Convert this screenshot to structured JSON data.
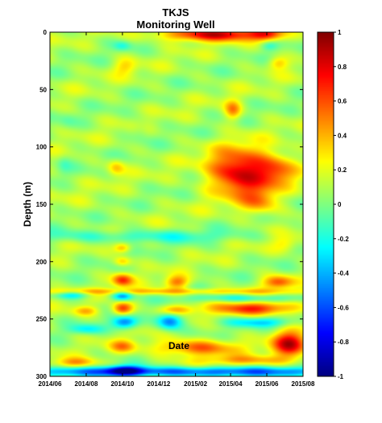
{
  "chart_data": {
    "type": "heatmap",
    "title": "TKJS",
    "subtitle": "Monitoring Well",
    "xlabel": "Date",
    "ylabel": "Depth (m)",
    "x_tick_labels": [
      "2014/06",
      "2014/08",
      "2014/10",
      "2014/12",
      "2015/02",
      "2015/04",
      "2015/06",
      "2015/08"
    ],
    "x_ticks": [
      "2014-06-01",
      "2014-08-01",
      "2014-10-01",
      "2014-12-01",
      "2015-02-01",
      "2015-04-01",
      "2015-06-01",
      "2015-08-01"
    ],
    "xlim": [
      "2014-06-01",
      "2015-08-01"
    ],
    "y_ticks": [
      0,
      50,
      100,
      150,
      200,
      250,
      300
    ],
    "ylim": [
      0,
      300
    ],
    "y_reversed": true,
    "colorbar": {
      "ticks": [
        1,
        0.8,
        0.6,
        0.4,
        0.2,
        0,
        -0.2,
        -0.4,
        -0.6,
        -0.8,
        -1
      ],
      "range": [
        -1,
        1
      ],
      "colormap": "jet",
      "placement": "right"
    },
    "base_value": 0.08,
    "features": [
      {
        "date": "2015-03-01",
        "depth": 2,
        "date_spread_days": 60,
        "depth_spread_m": 4,
        "value": 0.75
      },
      {
        "date": "2015-06-01",
        "depth": 2,
        "date_spread_days": 18,
        "depth_spread_m": 4,
        "value": 0.45
      },
      {
        "date": "2015-04-15",
        "depth": 122,
        "date_spread_days": 35,
        "depth_spread_m": 14,
        "value": 0.78
      },
      {
        "date": "2015-06-15",
        "depth": 120,
        "date_spread_days": 25,
        "depth_spread_m": 10,
        "value": 0.45
      },
      {
        "date": "2015-05-20",
        "depth": 148,
        "date_spread_days": 22,
        "depth_spread_m": 8,
        "value": 0.35
      },
      {
        "date": "2015-04-05",
        "depth": 68,
        "date_spread_days": 10,
        "depth_spread_m": 6,
        "value": 0.4
      },
      {
        "date": "2014-09-20",
        "depth": 118,
        "date_spread_days": 10,
        "depth_spread_m": 5,
        "value": 0.28
      },
      {
        "date": "2015-06-20",
        "depth": 27,
        "date_spread_days": 12,
        "depth_spread_m": 4,
        "value": 0.3
      },
      {
        "date": "2014-10-05",
        "depth": 30,
        "date_spread_days": 14,
        "depth_spread_m": 5,
        "value": 0.22
      },
      {
        "date": "2014-10-01",
        "depth": 12,
        "date_spread_days": 10,
        "depth_spread_m": 3,
        "value": -0.2
      },
      {
        "date": "2015-06-05",
        "depth": 12,
        "date_spread_days": 10,
        "depth_spread_m": 3,
        "value": -0.2
      },
      {
        "date": "2014-07-01",
        "depth": 78,
        "date_spread_days": 10,
        "depth_spread_m": 5,
        "value": -0.08
      },
      {
        "date": "2014-11-01",
        "depth": 85,
        "date_spread_days": 10,
        "depth_spread_m": 6,
        "value": -0.1
      },
      {
        "date": "2014-06-25",
        "depth": 115,
        "date_spread_days": 8,
        "depth_spread_m": 6,
        "value": -0.1
      },
      {
        "date": "2014-08-15",
        "depth": 150,
        "date_spread_days": 40,
        "depth_spread_m": 8,
        "value": 0.02
      },
      {
        "date": "2014-10-20",
        "depth": 178,
        "date_spread_days": 120,
        "depth_spread_m": 4,
        "value": -0.25
      },
      {
        "date": "2014-10-01",
        "depth": 188,
        "date_spread_days": 10,
        "depth_spread_m": 3,
        "value": 0.35
      },
      {
        "date": "2014-10-01",
        "depth": 200,
        "date_spread_days": 10,
        "depth_spread_m": 3,
        "value": 0.3
      },
      {
        "date": "2015-07-01",
        "depth": 185,
        "date_spread_days": 15,
        "depth_spread_m": 5,
        "value": 0.2
      },
      {
        "date": "2014-10-01",
        "depth": 216,
        "date_spread_days": 12,
        "depth_spread_m": 4,
        "value": 0.55
      },
      {
        "date": "2015-01-01",
        "depth": 218,
        "date_spread_days": 14,
        "depth_spread_m": 4,
        "value": 0.45
      },
      {
        "date": "2015-06-20",
        "depth": 218,
        "date_spread_days": 18,
        "depth_spread_m": 4,
        "value": 0.5
      },
      {
        "date": "2014-11-20",
        "depth": 226,
        "date_spread_days": 200,
        "depth_spread_m": 2,
        "value": 0.3
      },
      {
        "date": "2014-07-10",
        "depth": 229,
        "date_spread_days": 20,
        "depth_spread_m": 2.5,
        "value": -0.4
      },
      {
        "date": "2014-10-01",
        "depth": 230,
        "date_spread_days": 12,
        "depth_spread_m": 3,
        "value": -0.55
      },
      {
        "date": "2015-05-01",
        "depth": 232,
        "date_spread_days": 70,
        "depth_spread_m": 2.5,
        "value": -0.3
      },
      {
        "date": "2014-10-01",
        "depth": 241,
        "date_spread_days": 12,
        "depth_spread_m": 4,
        "value": 0.6
      },
      {
        "date": "2015-05-15",
        "depth": 241,
        "date_spread_days": 50,
        "depth_spread_m": 4,
        "value": 0.6
      },
      {
        "date": "2015-01-01",
        "depth": 242,
        "date_spread_days": 20,
        "depth_spread_m": 3,
        "value": 0.35
      },
      {
        "date": "2014-08-01",
        "depth": 243,
        "date_spread_days": 15,
        "depth_spread_m": 3,
        "value": 0.3
      },
      {
        "date": "2014-10-05",
        "depth": 253,
        "date_spread_days": 15,
        "depth_spread_m": 4,
        "value": -0.6
      },
      {
        "date": "2014-12-20",
        "depth": 252,
        "date_spread_days": 15,
        "depth_spread_m": 5,
        "value": -0.65
      },
      {
        "date": "2015-05-20",
        "depth": 253,
        "date_spread_days": 40,
        "depth_spread_m": 3,
        "value": -0.35
      },
      {
        "date": "2014-08-01",
        "depth": 259,
        "date_spread_days": 20,
        "depth_spread_m": 3,
        "value": -0.3
      },
      {
        "date": "2015-07-10",
        "depth": 272,
        "date_spread_days": 20,
        "depth_spread_m": 8,
        "value": 0.75
      },
      {
        "date": "2015-02-01",
        "depth": 275,
        "date_spread_days": 50,
        "depth_spread_m": 5,
        "value": 0.5
      },
      {
        "date": "2014-10-01",
        "depth": 274,
        "date_spread_days": 15,
        "depth_spread_m": 4,
        "value": 0.35
      },
      {
        "date": "2014-07-15",
        "depth": 288,
        "date_spread_days": 25,
        "depth_spread_m": 3,
        "value": 0.35
      },
      {
        "date": "2015-05-01",
        "depth": 286,
        "date_spread_days": 60,
        "depth_spread_m": 3,
        "value": 0.3
      },
      {
        "date": "2015-01-15",
        "depth": 296,
        "date_spread_days": 260,
        "depth_spread_m": 3,
        "value": -0.65
      },
      {
        "date": "2014-10-05",
        "depth": 295,
        "date_spread_days": 20,
        "depth_spread_m": 3,
        "value": -0.7
      }
    ]
  }
}
